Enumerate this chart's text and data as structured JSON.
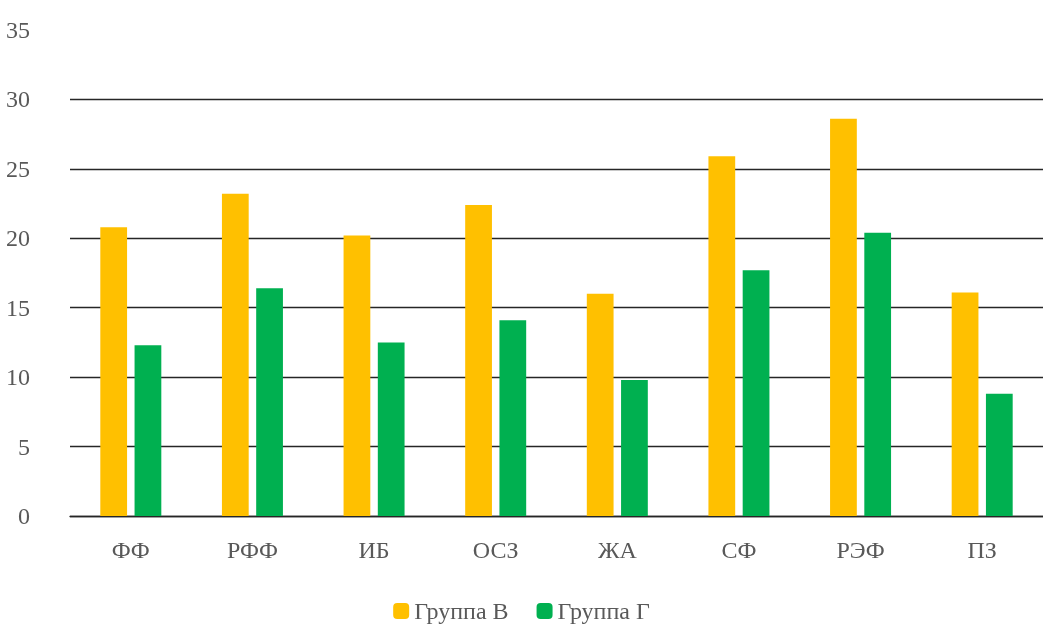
{
  "chart_data": {
    "type": "bar",
    "categories": [
      "ФФ",
      "РФФ",
      "ИБ",
      "ОСЗ",
      "ЖА",
      "СФ",
      "РЭФ",
      "ПЗ"
    ],
    "series": [
      {
        "name": "Группа В",
        "color": "#ffc000",
        "values": [
          20.8,
          23.2,
          20.2,
          22.4,
          16.0,
          25.9,
          28.6,
          16.1
        ]
      },
      {
        "name": "Группа Г",
        "color": "#00b050",
        "values": [
          12.3,
          16.4,
          12.5,
          14.1,
          9.8,
          17.7,
          20.4,
          8.8
        ]
      }
    ],
    "ylim": [
      0,
      35
    ],
    "yticks": [
      0,
      5,
      10,
      15,
      20,
      25,
      30,
      35
    ],
    "grid": "y",
    "legend": "bottom"
  }
}
